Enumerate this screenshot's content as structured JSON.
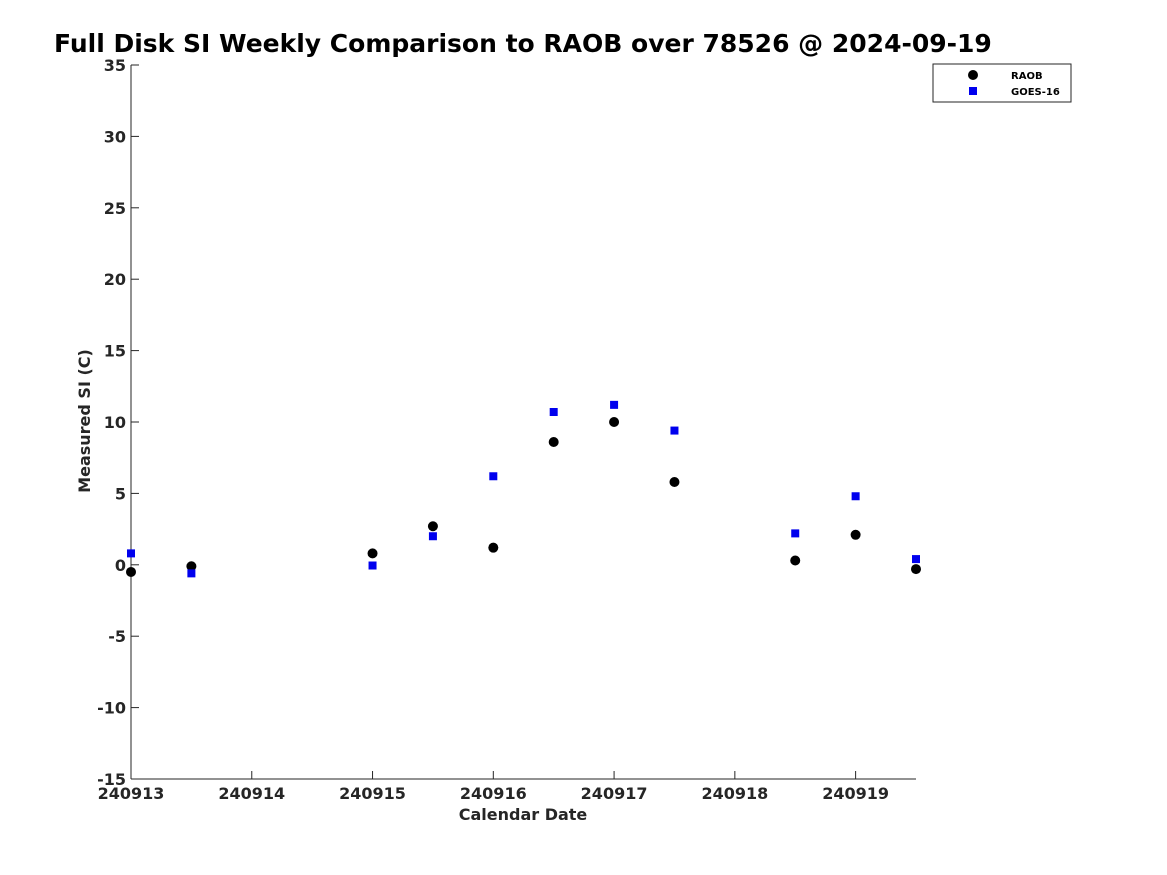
{
  "chart_data": {
    "type": "scatter",
    "title": "Full Disk SI Weekly Comparison to RAOB over 78526 @ 2024-09-19",
    "xlabel": "Calendar Date",
    "ylabel": "Measured SI (C)",
    "xlim": [
      "2024-09-13T00:00",
      "2024-09-19T12:00"
    ],
    "ylim": [
      -15,
      35
    ],
    "xticks": [
      "2024-09-13",
      "2024-09-14",
      "2024-09-15",
      "2024-09-16",
      "2024-09-17",
      "2024-09-18",
      "2024-09-19"
    ],
    "xtick_labels": [
      "240913",
      "240914",
      "240915",
      "240916",
      "240917",
      "240918",
      "240919"
    ],
    "yticks": [
      -15,
      -10,
      -5,
      0,
      5,
      10,
      15,
      20,
      25,
      30,
      35
    ],
    "grid": false,
    "legend_position": "top-right",
    "series": [
      {
        "name": "RAOB",
        "marker": "circle",
        "color": "#000000",
        "points": [
          {
            "x": "2024-09-13T00:00",
            "y": -0.5
          },
          {
            "x": "2024-09-13T12:00",
            "y": -0.1
          },
          {
            "x": "2024-09-15T00:00",
            "y": 0.8
          },
          {
            "x": "2024-09-15T12:00",
            "y": 2.7
          },
          {
            "x": "2024-09-16T00:00",
            "y": 1.2
          },
          {
            "x": "2024-09-16T12:00",
            "y": 8.6
          },
          {
            "x": "2024-09-17T00:00",
            "y": 10.0
          },
          {
            "x": "2024-09-17T12:00",
            "y": 5.8
          },
          {
            "x": "2024-09-18T12:00",
            "y": 0.3
          },
          {
            "x": "2024-09-19T00:00",
            "y": 2.1
          },
          {
            "x": "2024-09-19T12:00",
            "y": -0.3
          }
        ]
      },
      {
        "name": "GOES-16",
        "marker": "square",
        "color": "#0000ee",
        "points": [
          {
            "x": "2024-09-13T00:00",
            "y": 0.8
          },
          {
            "x": "2024-09-13T12:00",
            "y": -0.6
          },
          {
            "x": "2024-09-15T00:00",
            "y": -0.05
          },
          {
            "x": "2024-09-15T12:00",
            "y": 2.0
          },
          {
            "x": "2024-09-16T00:00",
            "y": 6.2
          },
          {
            "x": "2024-09-16T12:00",
            "y": 10.7
          },
          {
            "x": "2024-09-17T00:00",
            "y": 11.2
          },
          {
            "x": "2024-09-17T12:00",
            "y": 9.4
          },
          {
            "x": "2024-09-18T12:00",
            "y": 2.2
          },
          {
            "x": "2024-09-19T00:00",
            "y": 4.8
          },
          {
            "x": "2024-09-19T12:00",
            "y": 0.4
          }
        ]
      }
    ]
  }
}
